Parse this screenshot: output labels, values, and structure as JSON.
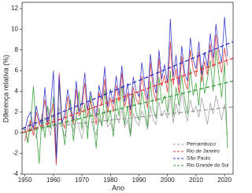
{
  "chart_data": {
    "type": "line",
    "xlabel": "Ano",
    "ylabel": "Diferença relativa (%)",
    "x": [
      1950,
      1951,
      1952,
      1953,
      1954,
      1955,
      1956,
      1957,
      1958,
      1959,
      1960,
      1961,
      1962,
      1963,
      1964,
      1965,
      1966,
      1967,
      1968,
      1969,
      1970,
      1971,
      1972,
      1973,
      1974,
      1975,
      1976,
      1977,
      1978,
      1979,
      1980,
      1981,
      1982,
      1983,
      1984,
      1985,
      1986,
      1987,
      1988,
      1989,
      1990,
      1991,
      1992,
      1993,
      1994,
      1995,
      1996,
      1997,
      1998,
      1999,
      2000,
      2001,
      2002,
      2003,
      2004,
      2005,
      2006,
      2007,
      2008,
      2009,
      2010,
      2011,
      2012,
      2013,
      2014,
      2015,
      2016,
      2017,
      2018,
      2019,
      2020,
      2021
    ],
    "xlim": [
      1949,
      2023
    ],
    "xticks": [
      1950,
      1960,
      1970,
      1980,
      1990,
      2000,
      2010,
      2020
    ],
    "ylim": [
      -4,
      12.6
    ],
    "yticks": [
      -4,
      -2,
      0,
      2,
      4,
      6,
      8,
      10,
      12
    ],
    "series": [
      {
        "name": "Pernambuco",
        "color": "#9a9a9a",
        "trend": [
          0.3,
          2.5
        ],
        "values": [
          0.5,
          -0.8,
          1.2,
          0.3,
          -0.5,
          1.0,
          0.2,
          1.5,
          0.8,
          -0.3,
          1.8,
          -3.2,
          2.5,
          0.6,
          -0.4,
          1.2,
          0.9,
          0.1,
          1.6,
          0.4,
          -0.6,
          1.1,
          0.5,
          2.0,
          0.3,
          -0.2,
          1.4,
          0.8,
          2.2,
          0.6,
          1.0,
          0.2,
          1.8,
          0.9,
          2.4,
          0.5,
          1.3,
          -0.4,
          1.9,
          1.1,
          0.7,
          2.1,
          1.5,
          0.3,
          2.6,
          1.2,
          0.8,
          3.0,
          1.6,
          2.2,
          1.4,
          3.5,
          0.9,
          2.8,
          1.7,
          4.0,
          2.3,
          1.1,
          3.2,
          2.0,
          2.6,
          1.5,
          3.4,
          2.1,
          0.8,
          2.9,
          1.8,
          3.6,
          2.4,
          1.2,
          2.8,
          -0.2
        ]
      },
      {
        "name": "Rio de Janeiro",
        "color": "#e03030",
        "trend": [
          0.0,
          7.2
        ],
        "values": [
          -0.8,
          0.5,
          1.2,
          -0.3,
          2.0,
          0.8,
          1.5,
          3.2,
          0.6,
          1.9,
          2.8,
          -3.0,
          5.8,
          1.2,
          0.4,
          3.5,
          2.1,
          0.9,
          4.2,
          1.6,
          2.4,
          4.8,
          1.5,
          3.1,
          2.2,
          0.8,
          3.9,
          2.6,
          5.2,
          1.9,
          3.4,
          2.0,
          4.6,
          3.0,
          5.8,
          2.5,
          3.9,
          1.6,
          4.4,
          3.2,
          2.8,
          5.5,
          3.9,
          2.4,
          6.8,
          4.1,
          3.0,
          7.2,
          4.5,
          5.6,
          3.9,
          8.8,
          4.6,
          6.2,
          3.8,
          7.4,
          5.0,
          4.2,
          8.0,
          6.1,
          5.4,
          7.8,
          4.9,
          6.9,
          5.6,
          8.6,
          6.3,
          9.5,
          7.0,
          5.8,
          8.2,
          6.5
        ]
      },
      {
        "name": "São Paulo",
        "color": "#2828c8",
        "trend": [
          0.4,
          8.8
        ],
        "values": [
          0.2,
          1.5,
          2.0,
          0.4,
          2.6,
          1.2,
          0.8,
          4.4,
          1.0,
          2.4,
          6.0,
          -2.5,
          5.5,
          0.9,
          1.8,
          4.2,
          2.6,
          1.2,
          5.0,
          2.0,
          3.0,
          5.8,
          2.2,
          4.0,
          2.8,
          1.5,
          4.6,
          3.2,
          6.4,
          2.5,
          4.2,
          2.8,
          5.5,
          3.6,
          6.5,
          3.0,
          4.8,
          2.2,
          5.4,
          4.0,
          3.5,
          6.8,
          4.6,
          3.2,
          7.6,
          5.0,
          3.8,
          8.0,
          5.2,
          6.6,
          4.8,
          11.0,
          5.4,
          7.5,
          4.6,
          8.4,
          5.8,
          5.0,
          9.2,
          7.0,
          6.2,
          8.8,
          5.6,
          7.8,
          6.4,
          9.6,
          7.2,
          10.5,
          8.0,
          6.8,
          11.2,
          7.4
        ]
      },
      {
        "name": "Rio Grande do Sul",
        "color": "#2f9a2f",
        "trend": [
          0.0,
          5.0
        ],
        "values": [
          0.5,
          -1.0,
          1.0,
          4.5,
          0.2,
          -3.0,
          1.8,
          -0.5,
          2.6,
          0.4,
          3.5,
          -2.2,
          4.8,
          0.8,
          -1.2,
          2.0,
          3.2,
          -0.8,
          1.5,
          4.0,
          0.3,
          2.8,
          -0.6,
          3.6,
          1.2,
          -1.5,
          2.4,
          0.6,
          4.2,
          1.0,
          2.2,
          -0.4,
          3.4,
          1.6,
          4.6,
          0.8,
          2.6,
          -0.2,
          3.8,
          2.0,
          1.2,
          4.0,
          2.4,
          0.6,
          5.0,
          2.2,
          1.4,
          5.4,
          2.8,
          3.6,
          2.0,
          6.0,
          1.6,
          4.4,
          2.6,
          5.6,
          3.2,
          1.8,
          6.2,
          3.6,
          4.8,
          2.6,
          6.5,
          3.8,
          5.2,
          7.0,
          4.0,
          8.0,
          5.6,
          3.4,
          6.8,
          -1.5
        ]
      }
    ]
  }
}
